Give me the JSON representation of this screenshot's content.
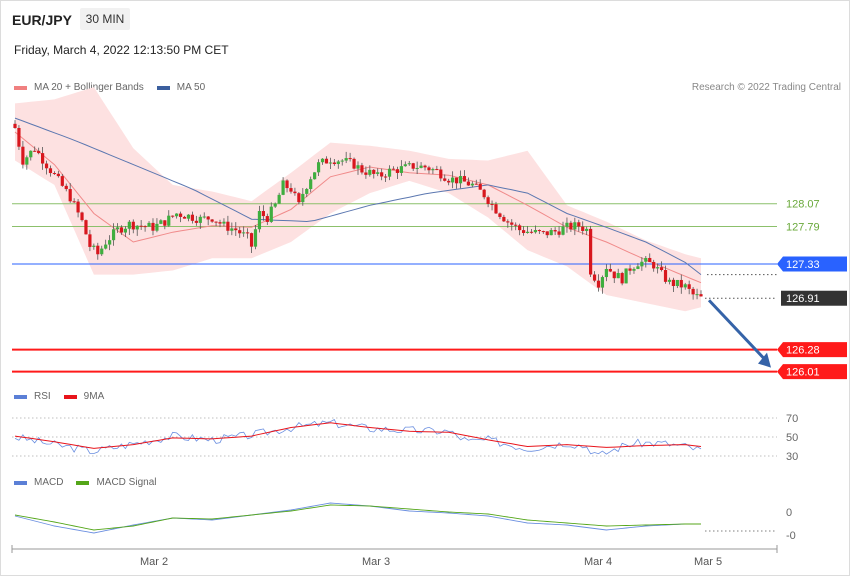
{
  "header": {
    "symbol": "EUR/JPY",
    "timeframe": "30 MIN",
    "datetime": "Friday, March 4, 2022 12:13:50 PM CET"
  },
  "legend_main": [
    {
      "label": "MA 20 + Bollinger Bands",
      "color": "#f08080"
    },
    {
      "label": "MA 50",
      "color": "#3b5f9e"
    }
  ],
  "credit": "Research © 2022 Trading Central",
  "legend_rsi": [
    {
      "label": "RSI",
      "color": "#5b7fd6"
    },
    {
      "label": "9MA",
      "color": "#e8141b"
    }
  ],
  "legend_macd": [
    {
      "label": "MACD",
      "color": "#5b7fd6"
    },
    {
      "label": "MACD Signal",
      "color": "#54a619"
    }
  ],
  "chart_data": {
    "type": "candlestick",
    "instrument": "EUR/JPY",
    "interval": "30 MIN",
    "x_ticks": [
      "Mar 2",
      "Mar 3",
      "Mar 4",
      "Mar 5"
    ],
    "price_levels": [
      {
        "value": 128.07,
        "label": "128.07",
        "kind": "resistance",
        "color": "#8cc06b"
      },
      {
        "value": 127.79,
        "label": "127.79",
        "kind": "resistance",
        "color": "#8cc06b"
      },
      {
        "value": 127.33,
        "label": "127.33",
        "kind": "pivot",
        "color": "#2962ff"
      },
      {
        "value": 126.91,
        "label": "126.91",
        "kind": "last_price",
        "color": "#333333"
      },
      {
        "value": 126.28,
        "label": "126.28",
        "kind": "support",
        "color": "#ff1a1a"
      },
      {
        "value": 126.01,
        "label": "126.01",
        "kind": "support",
        "color": "#ff1a1a"
      }
    ],
    "forecast_arrow": {
      "from": 126.91,
      "to": 126.01,
      "direction": "down"
    },
    "close_path": [
      [
        0,
        129.0
      ],
      [
        2,
        128.6
      ],
      [
        5,
        128.75
      ],
      [
        8,
        128.55
      ],
      [
        11,
        128.35
      ],
      [
        14,
        128.15
      ],
      [
        17,
        127.85
      ],
      [
        19,
        127.55
      ],
      [
        21,
        127.45
      ],
      [
        23,
        127.6
      ],
      [
        26,
        127.75
      ],
      [
        29,
        127.82
      ],
      [
        32,
        127.8
      ],
      [
        35,
        127.78
      ],
      [
        38,
        127.85
      ],
      [
        41,
        127.95
      ],
      [
        44,
        127.92
      ],
      [
        47,
        127.88
      ],
      [
        50,
        127.9
      ],
      [
        53,
        127.8
      ],
      [
        56,
        127.75
      ],
      [
        59,
        127.65
      ],
      [
        60,
        127.55
      ],
      [
        62,
        127.95
      ],
      [
        64,
        127.9
      ],
      [
        66,
        128.05
      ],
      [
        68,
        128.3
      ],
      [
        70,
        128.25
      ],
      [
        72,
        128.05
      ],
      [
        73,
        128.2
      ],
      [
        75,
        128.4
      ],
      [
        77,
        128.55
      ],
      [
        80,
        128.62
      ],
      [
        83,
        128.6
      ],
      [
        86,
        128.55
      ],
      [
        88,
        128.48
      ],
      [
        90,
        128.45
      ],
      [
        92,
        128.4
      ],
      [
        95,
        128.47
      ],
      [
        98,
        128.5
      ],
      [
        101,
        128.53
      ],
      [
        104,
        128.52
      ],
      [
        107,
        128.47
      ],
      [
        110,
        128.38
      ],
      [
        113,
        128.35
      ],
      [
        116,
        128.3
      ],
      [
        119,
        128.18
      ],
      [
        122,
        128.0
      ],
      [
        125,
        127.85
      ],
      [
        128,
        127.75
      ],
      [
        131,
        127.72
      ],
      [
        134,
        127.7
      ],
      [
        137,
        127.73
      ],
      [
        140,
        127.78
      ],
      [
        143,
        127.8
      ],
      [
        145,
        127.75
      ],
      [
        146,
        127.25
      ],
      [
        148,
        127.1
      ],
      [
        150,
        127.3
      ],
      [
        152,
        127.2
      ],
      [
        154,
        127.15
      ],
      [
        156,
        127.28
      ],
      [
        158,
        127.35
      ],
      [
        160,
        127.35
      ],
      [
        162,
        127.32
      ],
      [
        164,
        127.2
      ],
      [
        166,
        127.1
      ],
      [
        168,
        127.08
      ],
      [
        170,
        127.05
      ],
      [
        172,
        126.95
      ],
      [
        174,
        126.91
      ]
    ],
    "ma20_path": [
      [
        0,
        128.95
      ],
      [
        10,
        128.55
      ],
      [
        20,
        127.95
      ],
      [
        30,
        127.6
      ],
      [
        40,
        127.72
      ],
      [
        50,
        127.8
      ],
      [
        60,
        127.78
      ],
      [
        70,
        128.0
      ],
      [
        80,
        128.4
      ],
      [
        90,
        128.52
      ],
      [
        100,
        128.45
      ],
      [
        110,
        128.42
      ],
      [
        120,
        128.3
      ],
      [
        130,
        128.05
      ],
      [
        140,
        127.78
      ],
      [
        150,
        127.6
      ],
      [
        160,
        127.38
      ],
      [
        170,
        127.18
      ],
      [
        174,
        127.1
      ]
    ],
    "ma50_path": [
      [
        0,
        129.12
      ],
      [
        15,
        128.85
      ],
      [
        30,
        128.55
      ],
      [
        45,
        128.25
      ],
      [
        60,
        127.88
      ],
      [
        75,
        127.85
      ],
      [
        90,
        128.05
      ],
      [
        105,
        128.2
      ],
      [
        120,
        128.3
      ],
      [
        130,
        128.2
      ],
      [
        140,
        127.95
      ],
      [
        150,
        127.78
      ],
      [
        160,
        127.6
      ],
      [
        170,
        127.35
      ],
      [
        174,
        127.2
      ]
    ],
    "bollinger_upper_path": [
      [
        0,
        129.3
      ],
      [
        10,
        129.35
      ],
      [
        20,
        129.5
      ],
      [
        30,
        128.75
      ],
      [
        40,
        128.3
      ],
      [
        50,
        128.22
      ],
      [
        60,
        128.1
      ],
      [
        70,
        128.45
      ],
      [
        80,
        128.82
      ],
      [
        90,
        128.78
      ],
      [
        100,
        128.72
      ],
      [
        110,
        128.62
      ],
      [
        120,
        128.6
      ],
      [
        130,
        128.72
      ],
      [
        140,
        128.05
      ],
      [
        150,
        127.85
      ],
      [
        160,
        127.62
      ],
      [
        170,
        127.45
      ],
      [
        174,
        127.4
      ]
    ],
    "bollinger_lower_path": [
      [
        0,
        128.6
      ],
      [
        10,
        128.3
      ],
      [
        20,
        127.2
      ],
      [
        30,
        127.2
      ],
      [
        40,
        127.25
      ],
      [
        50,
        127.4
      ],
      [
        60,
        127.4
      ],
      [
        70,
        127.6
      ],
      [
        80,
        127.95
      ],
      [
        90,
        128.2
      ],
      [
        100,
        128.35
      ],
      [
        110,
        128.2
      ],
      [
        120,
        127.9
      ],
      [
        130,
        127.5
      ],
      [
        140,
        127.3
      ],
      [
        150,
        126.95
      ],
      [
        160,
        126.85
      ],
      [
        170,
        126.75
      ],
      [
        174,
        126.8
      ]
    ],
    "rsi": {
      "levels": [
        70,
        50,
        30
      ],
      "rsi_path": [
        [
          0,
          50
        ],
        [
          10,
          42
        ],
        [
          20,
          35
        ],
        [
          30,
          43
        ],
        [
          40,
          51
        ],
        [
          50,
          47
        ],
        [
          60,
          52
        ],
        [
          70,
          60
        ],
        [
          80,
          65
        ],
        [
          90,
          59
        ],
        [
          100,
          57
        ],
        [
          110,
          56
        ],
        [
          115,
          45
        ],
        [
          120,
          47
        ],
        [
          130,
          38
        ],
        [
          140,
          44
        ],
        [
          145,
          40
        ],
        [
          148,
          30
        ],
        [
          155,
          42
        ],
        [
          160,
          44
        ],
        [
          165,
          43
        ],
        [
          170,
          40
        ],
        [
          174,
          36
        ]
      ],
      "ma9_path": [
        [
          0,
          51
        ],
        [
          10,
          45
        ],
        [
          20,
          38
        ],
        [
          30,
          42
        ],
        [
          40,
          49
        ],
        [
          50,
          48
        ],
        [
          60,
          51
        ],
        [
          70,
          60
        ],
        [
          80,
          65
        ],
        [
          90,
          60
        ],
        [
          100,
          56
        ],
        [
          110,
          55
        ],
        [
          120,
          47
        ],
        [
          130,
          40
        ],
        [
          140,
          42
        ],
        [
          150,
          39
        ],
        [
          160,
          41
        ],
        [
          170,
          42
        ],
        [
          174,
          40
        ]
      ]
    },
    "macd": {
      "levels": [
        "0",
        "-0"
      ],
      "macd_path": [
        [
          0,
          0.02
        ],
        [
          10,
          -0.08
        ],
        [
          20,
          -0.15
        ],
        [
          30,
          -0.07
        ],
        [
          40,
          0.0
        ],
        [
          50,
          -0.02
        ],
        [
          60,
          0.03
        ],
        [
          70,
          0.08
        ],
        [
          80,
          0.15
        ],
        [
          90,
          0.12
        ],
        [
          100,
          0.07
        ],
        [
          110,
          0.05
        ],
        [
          120,
          0.02
        ],
        [
          130,
          -0.05
        ],
        [
          140,
          -0.07
        ],
        [
          150,
          -0.12
        ],
        [
          160,
          -0.08
        ],
        [
          170,
          -0.06
        ],
        [
          174,
          -0.06
        ]
      ],
      "signal_path": [
        [
          0,
          0.03
        ],
        [
          10,
          -0.04
        ],
        [
          20,
          -0.12
        ],
        [
          30,
          -0.08
        ],
        [
          40,
          0.0
        ],
        [
          50,
          -0.01
        ],
        [
          60,
          0.03
        ],
        [
          70,
          0.07
        ],
        [
          80,
          0.13
        ],
        [
          90,
          0.12
        ],
        [
          100,
          0.09
        ],
        [
          110,
          0.06
        ],
        [
          120,
          0.04
        ],
        [
          130,
          -0.02
        ],
        [
          140,
          -0.05
        ],
        [
          150,
          -0.08
        ],
        [
          160,
          -0.07
        ],
        [
          170,
          -0.06
        ],
        [
          174,
          -0.06
        ]
      ]
    }
  }
}
